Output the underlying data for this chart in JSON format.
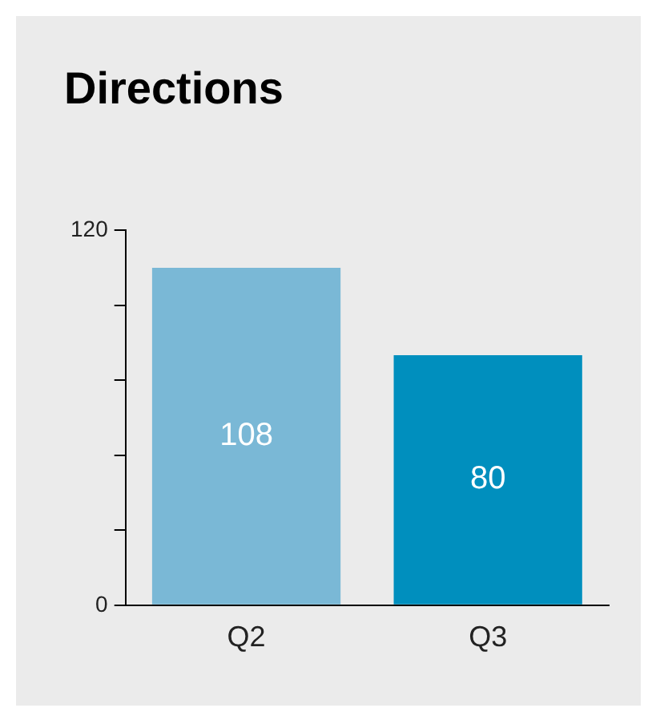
{
  "chart_data": {
    "type": "bar",
    "title": "Directions",
    "categories": [
      "Q2",
      "Q3"
    ],
    "values": [
      108,
      80
    ],
    "colors": [
      "#7ab8d6",
      "#008fbe"
    ],
    "ylim": [
      0,
      120
    ],
    "yticks": [
      0,
      {
        "value": 24,
        "label": null
      },
      {
        "value": 48,
        "label": null
      },
      {
        "value": 72,
        "label": null
      },
      {
        "value": 96,
        "label": null
      },
      120
    ],
    "data_labels": true,
    "grid": false,
    "legend": false
  }
}
